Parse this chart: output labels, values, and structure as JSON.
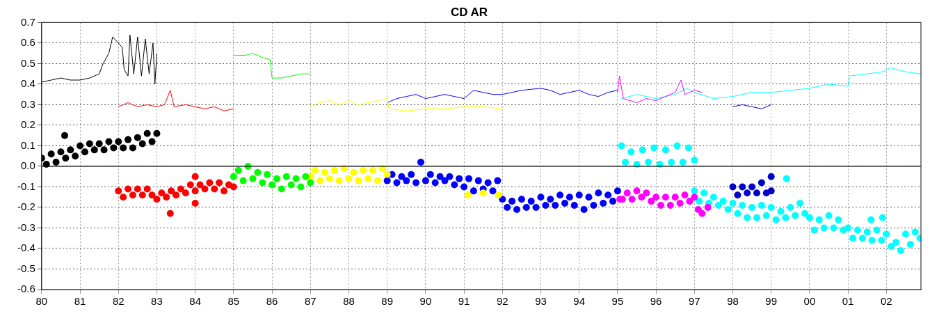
{
  "chart_data": {
    "type": "line",
    "title": "CD AR",
    "xlim": [
      1980,
      2002.9
    ],
    "ylim": [
      -0.6,
      0.7
    ],
    "xticks": [
      {
        "value": 1980,
        "label": "80"
      },
      {
        "value": 1981,
        "label": "81"
      },
      {
        "value": 1982,
        "label": "82"
      },
      {
        "value": 1983,
        "label": "83"
      },
      {
        "value": 1984,
        "label": "84"
      },
      {
        "value": 1985,
        "label": "85"
      },
      {
        "value": 1986,
        "label": "86"
      },
      {
        "value": 1987,
        "label": "87"
      },
      {
        "value": 1988,
        "label": "88"
      },
      {
        "value": 1989,
        "label": "89"
      },
      {
        "value": 1990,
        "label": "90"
      },
      {
        "value": 1991,
        "label": "91"
      },
      {
        "value": 1992,
        "label": "92"
      },
      {
        "value": 1993,
        "label": "93"
      },
      {
        "value": 1994,
        "label": "94"
      },
      {
        "value": 1995,
        "label": "95"
      },
      {
        "value": 1996,
        "label": "96"
      },
      {
        "value": 1997,
        "label": "97"
      },
      {
        "value": 1998,
        "label": "98"
      },
      {
        "value": 1999,
        "label": "99"
      },
      {
        "value": 2000,
        "label": "00"
      },
      {
        "value": 2001,
        "label": "01"
      },
      {
        "value": 2002,
        "label": "02"
      }
    ],
    "yticks": [
      0.7,
      0.6,
      0.5,
      0.4,
      0.3,
      0.2,
      0.1,
      {
        "value": 0,
        "label": "0.0"
      },
      -0.1,
      -0.2,
      -0.3,
      -0.4,
      -0.5,
      -0.6
    ],
    "grid": true,
    "legend": false,
    "ref_lines": [
      {
        "axis": "y",
        "value": 0,
        "color": "#000000",
        "line_style": "solid"
      }
    ],
    "series": [
      {
        "type": "line",
        "marker": "none",
        "color": "#000000",
        "x": [
          1980.0,
          1980.25,
          1980.5,
          1980.75,
          1981.0,
          1981.25,
          1981.5,
          1981.6,
          1981.75,
          1981.85,
          1982.0,
          1982.1,
          1982.15,
          1982.25,
          1982.3,
          1982.4,
          1982.5,
          1982.6,
          1982.7,
          1982.8,
          1982.9,
          1982.95,
          1983.0
        ],
        "values": [
          0.41,
          0.42,
          0.43,
          0.42,
          0.42,
          0.43,
          0.45,
          0.5,
          0.55,
          0.63,
          0.6,
          0.58,
          0.47,
          0.44,
          0.64,
          0.45,
          0.63,
          0.44,
          0.62,
          0.45,
          0.6,
          0.4,
          0.55
        ]
      },
      {
        "type": "line",
        "marker": "none",
        "color": "#ff0000",
        "x": [
          1982.0,
          1982.25,
          1982.5,
          1982.75,
          1983.0,
          1983.2,
          1983.35,
          1983.45,
          1983.75,
          1984.0,
          1984.25,
          1984.5,
          1984.75,
          1985.0
        ],
        "values": [
          0.29,
          0.31,
          0.29,
          0.3,
          0.29,
          0.3,
          0.37,
          0.29,
          0.3,
          0.29,
          0.28,
          0.29,
          0.27,
          0.28
        ]
      },
      {
        "type": "line",
        "marker": "none",
        "color": "#00ff00",
        "x": [
          1985.0,
          1985.3,
          1985.5,
          1985.75,
          1985.95,
          1986.0,
          1986.25,
          1986.5,
          1986.75,
          1987.0
        ],
        "values": [
          0.54,
          0.54,
          0.55,
          0.53,
          0.52,
          0.43,
          0.43,
          0.44,
          0.45,
          0.45
        ]
      },
      {
        "type": "line",
        "marker": "none",
        "color": "#ffff00",
        "x": [
          1987.0,
          1987.25,
          1987.5,
          1987.75,
          1988.0,
          1988.25,
          1988.5,
          1988.75,
          1989.0,
          1989.05,
          1989.5,
          1990.0,
          1990.5,
          1991.0,
          1991.5,
          1992.0
        ],
        "values": [
          0.29,
          0.31,
          0.32,
          0.3,
          0.32,
          0.3,
          0.31,
          0.32,
          0.33,
          0.28,
          0.27,
          0.28,
          0.28,
          0.29,
          0.29,
          0.28
        ]
      },
      {
        "type": "line",
        "marker": "none",
        "color": "#0000ff",
        "x": [
          1989.0,
          1989.25,
          1989.5,
          1989.75,
          1990.0,
          1990.25,
          1990.5,
          1990.75,
          1991.0,
          1991.25,
          1991.5,
          1991.75,
          1992.0,
          1992.25,
          1992.5,
          1993.0,
          1993.25,
          1993.5,
          1993.75,
          1994.0,
          1994.25,
          1994.5,
          1994.75,
          1995.0
        ],
        "values": [
          0.31,
          0.33,
          0.34,
          0.35,
          0.33,
          0.34,
          0.35,
          0.34,
          0.33,
          0.37,
          0.36,
          0.35,
          0.35,
          0.36,
          0.37,
          0.38,
          0.37,
          0.35,
          0.36,
          0.37,
          0.35,
          0.34,
          0.36,
          0.37
        ]
      },
      {
        "type": "line",
        "marker": "none",
        "color": "#ff00ff",
        "x": [
          1995.0,
          1995.05,
          1995.15,
          1995.5,
          1995.75,
          1996.0,
          1996.25,
          1996.5,
          1996.65,
          1996.75,
          1997.0,
          1997.2
        ],
        "values": [
          0.36,
          0.44,
          0.33,
          0.31,
          0.33,
          0.32,
          0.34,
          0.36,
          0.42,
          0.35,
          0.37,
          0.36
        ]
      },
      {
        "type": "line",
        "marker": "none",
        "color": "#00ffff",
        "x": [
          1995.1,
          1995.5,
          1996.0,
          1996.5,
          1996.8,
          1997.0,
          1997.5,
          1998.0,
          1998.5,
          1999.0,
          1999.5,
          2000.0,
          2000.5,
          2001.0,
          2001.05,
          2001.5,
          2001.9,
          2002.1,
          2002.5,
          2002.9
        ],
        "values": [
          0.33,
          0.35,
          0.33,
          0.35,
          0.38,
          0.36,
          0.33,
          0.34,
          0.36,
          0.36,
          0.37,
          0.38,
          0.4,
          0.39,
          0.44,
          0.45,
          0.46,
          0.48,
          0.46,
          0.45
        ]
      },
      {
        "type": "line",
        "marker": "none",
        "color": "#0000cc",
        "x": [
          1998.0,
          1998.25,
          1998.5,
          1998.75,
          1999.0
        ],
        "values": [
          0.29,
          0.3,
          0.29,
          0.28,
          0.3
        ]
      },
      {
        "type": "scatter",
        "marker": "circle",
        "color": "#000000",
        "x": [
          1980.0,
          1980.125,
          1980.25,
          1980.375,
          1980.5,
          1980.625,
          1980.75,
          1980.875,
          1981.0,
          1981.125,
          1981.25,
          1981.375,
          1981.5,
          1981.625,
          1981.75,
          1981.875,
          1982.0,
          1982.125,
          1982.25,
          1982.375,
          1982.5,
          1982.625,
          1982.75,
          1982.875,
          1983.0,
          1980.6
        ],
        "values": [
          0.04,
          0.01,
          0.06,
          0.02,
          0.07,
          0.04,
          0.08,
          0.05,
          0.1,
          0.07,
          0.11,
          0.08,
          0.11,
          0.08,
          0.12,
          0.09,
          0.12,
          0.09,
          0.13,
          0.09,
          0.14,
          0.11,
          0.16,
          0.12,
          0.16,
          0.15
        ]
      },
      {
        "type": "scatter",
        "marker": "circle",
        "color": "#ff0000",
        "x": [
          1982.0,
          1982.125,
          1982.25,
          1982.375,
          1982.5,
          1982.625,
          1982.75,
          1982.875,
          1983.0,
          1983.125,
          1983.25,
          1983.375,
          1983.5,
          1983.625,
          1983.75,
          1983.875,
          1984.0,
          1984.125,
          1984.25,
          1984.375,
          1984.5,
          1984.625,
          1984.75,
          1984.875,
          1985.0,
          1983.35,
          1984.0,
          1984.0
        ],
        "values": [
          -0.12,
          -0.15,
          -0.11,
          -0.14,
          -0.11,
          -0.14,
          -0.11,
          -0.14,
          -0.16,
          -0.13,
          -0.15,
          -0.12,
          -0.14,
          -0.11,
          -0.13,
          -0.09,
          -0.12,
          -0.09,
          -0.11,
          -0.08,
          -0.11,
          -0.08,
          -0.12,
          -0.09,
          -0.1,
          -0.23,
          -0.18,
          -0.05
        ]
      },
      {
        "type": "scatter",
        "marker": "circle",
        "color": "#00ff00",
        "x": [
          1985.0,
          1985.125,
          1985.25,
          1985.375,
          1985.5,
          1985.625,
          1985.75,
          1985.875,
          1986.0,
          1986.125,
          1986.25,
          1986.375,
          1986.5,
          1986.625,
          1986.75,
          1986.875,
          1987.0
        ],
        "values": [
          -0.05,
          -0.02,
          -0.07,
          0.0,
          -0.06,
          -0.03,
          -0.08,
          -0.04,
          -0.09,
          -0.06,
          -0.11,
          -0.05,
          -0.09,
          -0.06,
          -0.1,
          -0.05,
          -0.08
        ]
      },
      {
        "type": "scatter",
        "marker": "circle",
        "color": "#ffff00",
        "x": [
          1987.0,
          1987.125,
          1987.25,
          1987.375,
          1987.5,
          1987.625,
          1987.75,
          1987.875,
          1988.0,
          1988.125,
          1988.25,
          1988.375,
          1988.5,
          1988.625,
          1988.75,
          1988.875,
          1989.0,
          1991.1,
          1991.5,
          1991.9
        ],
        "values": [
          -0.05,
          -0.02,
          -0.07,
          -0.03,
          -0.06,
          -0.02,
          -0.07,
          -0.01,
          -0.06,
          -0.03,
          -0.07,
          -0.02,
          -0.06,
          -0.02,
          -0.07,
          -0.01,
          -0.04,
          -0.14,
          -0.13,
          -0.14
        ]
      },
      {
        "type": "scatter",
        "marker": "circle",
        "color": "#0000ff",
        "x": [
          1989.0,
          1989.125,
          1989.25,
          1989.375,
          1989.5,
          1989.625,
          1989.75,
          1989.875,
          1990.0,
          1990.125,
          1990.25,
          1990.375,
          1990.5,
          1990.625,
          1990.75,
          1990.875,
          1991.0,
          1991.125,
          1991.25,
          1991.375,
          1991.5,
          1991.625,
          1991.75,
          1991.875,
          1992.0,
          1992.125,
          1992.25,
          1992.375,
          1992.5,
          1992.625,
          1992.75,
          1992.875,
          1993.0,
          1993.125,
          1993.25,
          1993.375,
          1993.5,
          1993.625,
          1993.75,
          1993.875,
          1994.0,
          1994.125,
          1994.25,
          1994.375,
          1994.5,
          1994.625,
          1994.75,
          1994.875,
          1995.0
        ],
        "values": [
          -0.07,
          -0.04,
          -0.08,
          -0.05,
          -0.07,
          -0.04,
          -0.08,
          0.02,
          -0.07,
          -0.04,
          -0.08,
          -0.05,
          -0.07,
          -0.05,
          -0.09,
          -0.06,
          -0.1,
          -0.06,
          -0.12,
          -0.07,
          -0.11,
          -0.08,
          -0.12,
          -0.07,
          -0.16,
          -0.2,
          -0.17,
          -0.21,
          -0.16,
          -0.2,
          -0.17,
          -0.2,
          -0.15,
          -0.19,
          -0.16,
          -0.19,
          -0.14,
          -0.18,
          -0.15,
          -0.19,
          -0.14,
          -0.21,
          -0.15,
          -0.19,
          -0.13,
          -0.18,
          -0.14,
          -0.17,
          -0.12
        ]
      },
      {
        "type": "scatter",
        "marker": "circle",
        "color": "#ff00ff",
        "x": [
          1995.06,
          1995.125,
          1995.25,
          1995.375,
          1995.5,
          1995.625,
          1995.75,
          1995.875,
          1996.0,
          1996.125,
          1996.25,
          1996.375,
          1996.5,
          1996.625,
          1996.75,
          1996.875,
          1997.0,
          1997.1,
          1997.2,
          1997.35
        ],
        "values": [
          -0.16,
          -0.16,
          -0.13,
          -0.16,
          -0.12,
          -0.15,
          -0.13,
          -0.17,
          -0.15,
          -0.19,
          -0.15,
          -0.19,
          -0.15,
          -0.18,
          -0.14,
          -0.17,
          -0.15,
          -0.21,
          -0.23,
          -0.2
        ]
      },
      {
        "type": "scatter",
        "marker": "circle",
        "color": "#00ffff",
        "x": [
          1995.1,
          1995.2,
          1995.35,
          1995.5,
          1995.65,
          1995.8,
          1995.95,
          1996.1,
          1996.25,
          1996.4,
          1996.55,
          1996.7,
          1996.85,
          1997.0
        ],
        "values": [
          0.1,
          0.02,
          0.07,
          0.01,
          0.08,
          0.02,
          0.09,
          0.01,
          0.08,
          0.02,
          0.1,
          0.02,
          0.09,
          0.03
        ]
      },
      {
        "type": "scatter",
        "marker": "circle",
        "color": "#00ffff",
        "x": [
          1997.0,
          1997.125,
          1997.25,
          1997.375,
          1997.5,
          1997.625,
          1997.75,
          1997.875,
          1998.0,
          1998.125,
          1998.25,
          1998.375,
          1998.5,
          1998.625,
          1998.75,
          1998.875,
          1999.0,
          1999.125,
          1999.25,
          1999.375,
          1999.5,
          1999.625,
          1999.75,
          1999.875,
          2000.0,
          2000.125,
          2000.25,
          2000.375,
          2000.5,
          2000.625,
          2000.75,
          2000.875,
          2001.0,
          2001.125,
          2001.25,
          2001.375,
          2001.5,
          2001.625,
          2001.75,
          2001.875,
          2002.0,
          2002.125,
          2002.25,
          2002.375,
          2002.5,
          2002.625,
          2002.75,
          2002.875,
          1999.4,
          2001.6,
          2001.9
        ],
        "values": [
          -0.12,
          -0.17,
          -0.13,
          -0.18,
          -0.15,
          -0.19,
          -0.17,
          -0.21,
          -0.18,
          -0.23,
          -0.19,
          -0.25,
          -0.2,
          -0.25,
          -0.19,
          -0.24,
          -0.2,
          -0.26,
          -0.22,
          -0.25,
          -0.2,
          -0.24,
          -0.18,
          -0.23,
          -0.25,
          -0.31,
          -0.26,
          -0.3,
          -0.24,
          -0.3,
          -0.26,
          -0.31,
          -0.3,
          -0.35,
          -0.31,
          -0.35,
          -0.32,
          -0.36,
          -0.31,
          -0.36,
          -0.33,
          -0.39,
          -0.37,
          -0.41,
          -0.33,
          -0.38,
          -0.32,
          -0.35,
          -0.06,
          -0.26,
          -0.25
        ]
      },
      {
        "type": "scatter",
        "marker": "circle",
        "color": "#0000cc",
        "x": [
          1998.0,
          1998.125,
          1998.25,
          1998.375,
          1998.5,
          1998.625,
          1998.75,
          1998.875,
          1999.0,
          1999.0
        ],
        "values": [
          -0.1,
          -0.14,
          -0.1,
          -0.13,
          -0.1,
          -0.13,
          -0.08,
          -0.13,
          -0.05,
          -0.12
        ]
      }
    ]
  }
}
